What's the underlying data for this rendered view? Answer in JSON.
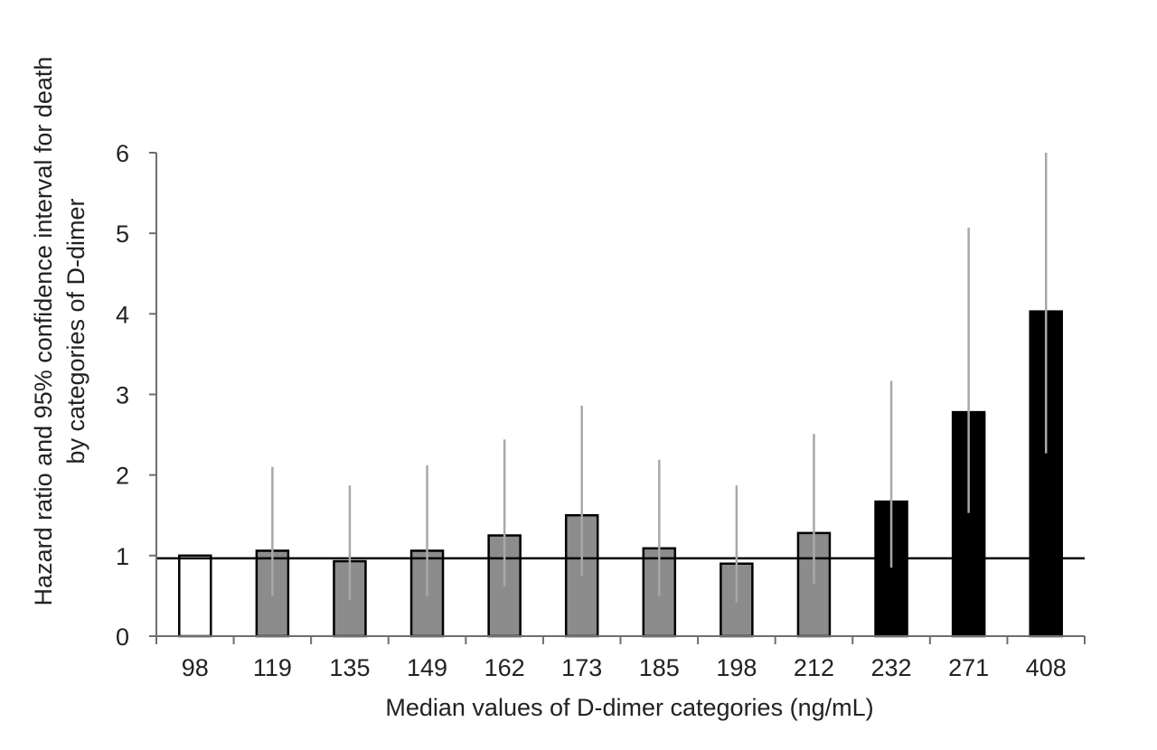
{
  "chart_data": {
    "type": "bar",
    "xlabel": "Median values of D-dimer categories (ng/mL)",
    "ylabel_lines": [
      "Hazard ratio and 95% confidence interval for death",
      "by categories of D-dimer"
    ],
    "ylim": [
      0,
      6
    ],
    "yticks": [
      "0",
      "1",
      "2",
      "3",
      "4",
      "5",
      "6"
    ],
    "categories": [
      "98",
      "119",
      "135",
      "149",
      "162",
      "173",
      "185",
      "198",
      "212",
      "232",
      "271",
      "408"
    ],
    "values": [
      1.0,
      1.06,
      0.93,
      1.06,
      1.25,
      1.5,
      1.09,
      0.9,
      1.28,
      1.67,
      2.78,
      4.03
    ],
    "ci_lower": [
      null,
      0.5,
      0.45,
      0.5,
      0.62,
      0.75,
      0.5,
      0.42,
      0.65,
      0.85,
      1.53,
      2.27
    ],
    "ci_upper": [
      null,
      2.1,
      1.87,
      2.12,
      2.44,
      2.86,
      2.19,
      1.87,
      2.51,
      3.17,
      5.07,
      6.0
    ],
    "bar_fill": [
      "white",
      "gray",
      "gray",
      "gray",
      "gray",
      "gray",
      "gray",
      "gray",
      "gray",
      "black",
      "black",
      "black"
    ],
    "reference_line": 1,
    "grid": false,
    "colors": {
      "white": "#ffffff",
      "gray": "#8c8c8c",
      "black": "#000000",
      "ci": "#a8a8a8",
      "axis": "#6e6e6e"
    }
  }
}
